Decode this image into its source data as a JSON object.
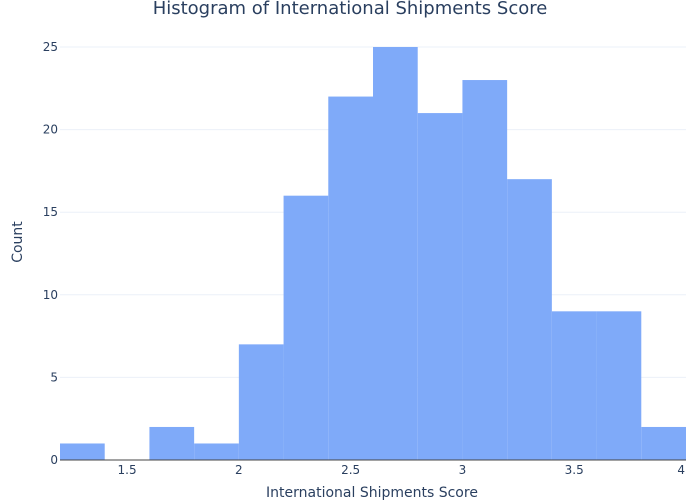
{
  "chart_data": {
    "type": "bar",
    "title": "Histogram of International Shipments Score",
    "xlabel": "International Shipments Score",
    "ylabel": "Count",
    "bins": [
      {
        "x0": 1.2,
        "x1": 1.4,
        "count": 1
      },
      {
        "x0": 1.4,
        "x1": 1.6,
        "count": 0
      },
      {
        "x0": 1.6,
        "x1": 1.8,
        "count": 2
      },
      {
        "x0": 1.8,
        "x1": 2.0,
        "count": 1
      },
      {
        "x0": 2.0,
        "x1": 2.2,
        "count": 7
      },
      {
        "x0": 2.2,
        "x1": 2.4,
        "count": 16
      },
      {
        "x0": 2.4,
        "x1": 2.6,
        "count": 22
      },
      {
        "x0": 2.6,
        "x1": 2.8,
        "count": 25
      },
      {
        "x0": 2.8,
        "x1": 3.0,
        "count": 21
      },
      {
        "x0": 3.0,
        "x1": 3.2,
        "count": 23
      },
      {
        "x0": 3.2,
        "x1": 3.4,
        "count": 17
      },
      {
        "x0": 3.4,
        "x1": 3.6,
        "count": 9
      },
      {
        "x0": 3.6,
        "x1": 3.8,
        "count": 9
      },
      {
        "x0": 3.8,
        "x1": 4.0,
        "count": 2
      }
    ],
    "xlim": [
      1.2,
      4.0
    ],
    "ylim": [
      0,
      25
    ],
    "xticks": [
      1.5,
      2,
      2.5,
      3,
      3.5,
      4
    ],
    "xtick_labels": [
      "1.5",
      "2",
      "2.5",
      "3",
      "3.5",
      "4"
    ],
    "yticks": [
      0,
      5,
      10,
      15,
      20,
      25
    ],
    "ytick_labels": [
      "0",
      "5",
      "10",
      "15",
      "20",
      "25"
    ],
    "grid": true,
    "legend": "none",
    "bar_color": "#7faaf9",
    "grid_color": "#ebf0f8",
    "text_color": "#2a3f5f"
  }
}
